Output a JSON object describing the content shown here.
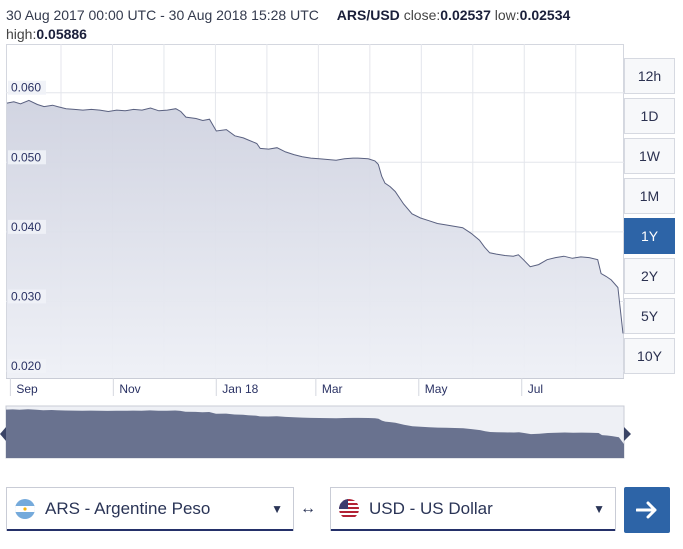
{
  "info": {
    "date_range": "30 Aug 2017 00:00 UTC - 30 Aug 2018 15:28 UTC",
    "pair": "ARS/USD",
    "close_label": "close:",
    "close_value": "0.02537",
    "low_label": "low:",
    "low_value": "0.02534",
    "high_label": "high:",
    "high_value": "0.05886"
  },
  "ranges": [
    {
      "label": "12h",
      "active": false
    },
    {
      "label": "1D",
      "active": false
    },
    {
      "label": "1W",
      "active": false
    },
    {
      "label": "1M",
      "active": false
    },
    {
      "label": "1Y",
      "active": true
    },
    {
      "label": "2Y",
      "active": false
    },
    {
      "label": "5Y",
      "active": false
    },
    {
      "label": "10Y",
      "active": false
    }
  ],
  "from_currency": {
    "label": "ARS - Argentine Peso",
    "icon": "argentina-flag-icon"
  },
  "to_currency": {
    "label": "USD - US Dollar",
    "icon": "us-flag-icon"
  },
  "swap_symbol": "↔",
  "go_icon": "arrow-right-icon",
  "colors": {
    "accent": "#2d64a7",
    "area_fill": "#d9dce8",
    "line": "#5a6180",
    "navigator_fill": "#69728f"
  },
  "chart_data": {
    "type": "area",
    "title": "",
    "xlabel": "",
    "ylabel": "",
    "ylim": [
      0.019,
      0.067
    ],
    "xlim": [
      0,
      365
    ],
    "y_ticks": [
      "0.060",
      "0.050",
      "0.040",
      "0.030",
      "0.020"
    ],
    "y_tick_values": [
      0.06,
      0.05,
      0.04,
      0.03,
      0.02
    ],
    "x_tick_labels": [
      "Sep",
      "Nov",
      "Jan 18",
      "Mar",
      "May",
      "Jul"
    ],
    "x_tick_days": [
      2,
      63,
      124,
      183,
      244,
      305
    ],
    "grid": true,
    "series": [
      {
        "x": [
          0,
          4,
          8,
          13,
          18,
          22,
          27,
          30,
          35,
          40,
          45,
          50,
          55,
          60,
          65,
          70,
          75,
          80,
          85,
          90,
          95,
          100,
          103,
          106,
          112,
          116,
          120,
          124,
          130,
          135,
          140,
          143,
          148,
          150,
          155,
          160,
          165,
          170,
          175,
          180,
          185,
          190,
          195,
          200,
          205,
          208,
          214,
          218,
          220,
          222,
          224,
          227,
          230,
          235,
          240,
          245,
          250,
          255,
          260,
          270,
          275,
          280,
          283,
          286,
          290,
          295,
          300,
          303,
          306,
          310,
          315,
          320,
          325,
          330,
          335,
          340,
          345,
          350,
          352,
          355,
          358,
          362,
          365
        ],
        "y": [
          0.0585,
          0.0587,
          0.0584,
          0.0589,
          0.0583,
          0.058,
          0.0582,
          0.058,
          0.0577,
          0.0576,
          0.0575,
          0.0576,
          0.0575,
          0.0573,
          0.0575,
          0.0574,
          0.0576,
          0.0575,
          0.0578,
          0.0574,
          0.0575,
          0.0577,
          0.0573,
          0.0565,
          0.0563,
          0.056,
          0.0562,
          0.0545,
          0.0547,
          0.0538,
          0.0535,
          0.0532,
          0.0527,
          0.052,
          0.0519,
          0.0521,
          0.0515,
          0.0511,
          0.0508,
          0.0506,
          0.0505,
          0.0504,
          0.0503,
          0.0505,
          0.0506,
          0.0506,
          0.0505,
          0.0502,
          0.0497,
          0.048,
          0.047,
          0.0465,
          0.0458,
          0.044,
          0.0426,
          0.042,
          0.0416,
          0.0412,
          0.041,
          0.0406,
          0.0398,
          0.0388,
          0.0378,
          0.037,
          0.0368,
          0.0366,
          0.0365,
          0.0367,
          0.036,
          0.035,
          0.0353,
          0.036,
          0.0363,
          0.0365,
          0.0362,
          0.0364,
          0.0363,
          0.036,
          0.034,
          0.0336,
          0.0331,
          0.032,
          0.0254
        ]
      }
    ]
  }
}
